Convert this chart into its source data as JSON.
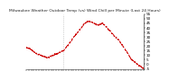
{
  "title": "Milwaukee Weather Outdoor Temp (vs) Wind Chill per Minute (Last 24 Hours)",
  "title_fontsize": 3.2,
  "title_color": "#222222",
  "background_color": "#ffffff",
  "plot_bg_color": "#ffffff",
  "line_color": "#cc0000",
  "line_style": "--",
  "line_width": 0.7,
  "y_label_fontsize": 3.0,
  "ylim": [
    -5,
    55
  ],
  "yticks": [
    -5,
    0,
    5,
    10,
    15,
    20,
    25,
    30,
    35,
    40,
    45,
    50,
    55
  ],
  "ytick_labels": [
    "-5",
    "0",
    "5",
    "10",
    "15",
    "20",
    "25",
    "30",
    "35",
    "40",
    "45",
    "50",
    "55"
  ],
  "vline_x": 0.32,
  "vline_color": "#aaaaaa",
  "vline_style": ":",
  "num_points": 1440,
  "num_xticks": 48
}
